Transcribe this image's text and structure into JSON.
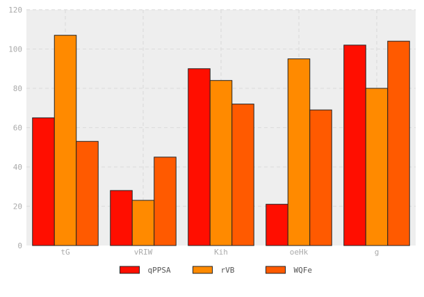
{
  "chart_data": {
    "type": "bar",
    "categories": [
      "tG",
      "vRIW",
      "Kih",
      "oeHk",
      "g"
    ],
    "series": [
      {
        "name": "qPPSA",
        "color": "#ff0e00",
        "values": [
          65,
          28,
          90,
          21,
          102
        ]
      },
      {
        "name": "rVB",
        "color": "#ff8a00",
        "values": [
          107,
          23,
          84,
          95,
          80
        ]
      },
      {
        "name": "WQFe",
        "color": "#ff5a00",
        "values": [
          53,
          45,
          72,
          69,
          104
        ]
      }
    ],
    "title": "",
    "xlabel": "",
    "ylabel": "",
    "ylim": [
      0,
      120
    ],
    "yticks": [
      0,
      20,
      40,
      60,
      80,
      100,
      120
    ],
    "grid": true,
    "legend_position": "bottom-center",
    "plot_background": "#eeeeee"
  }
}
